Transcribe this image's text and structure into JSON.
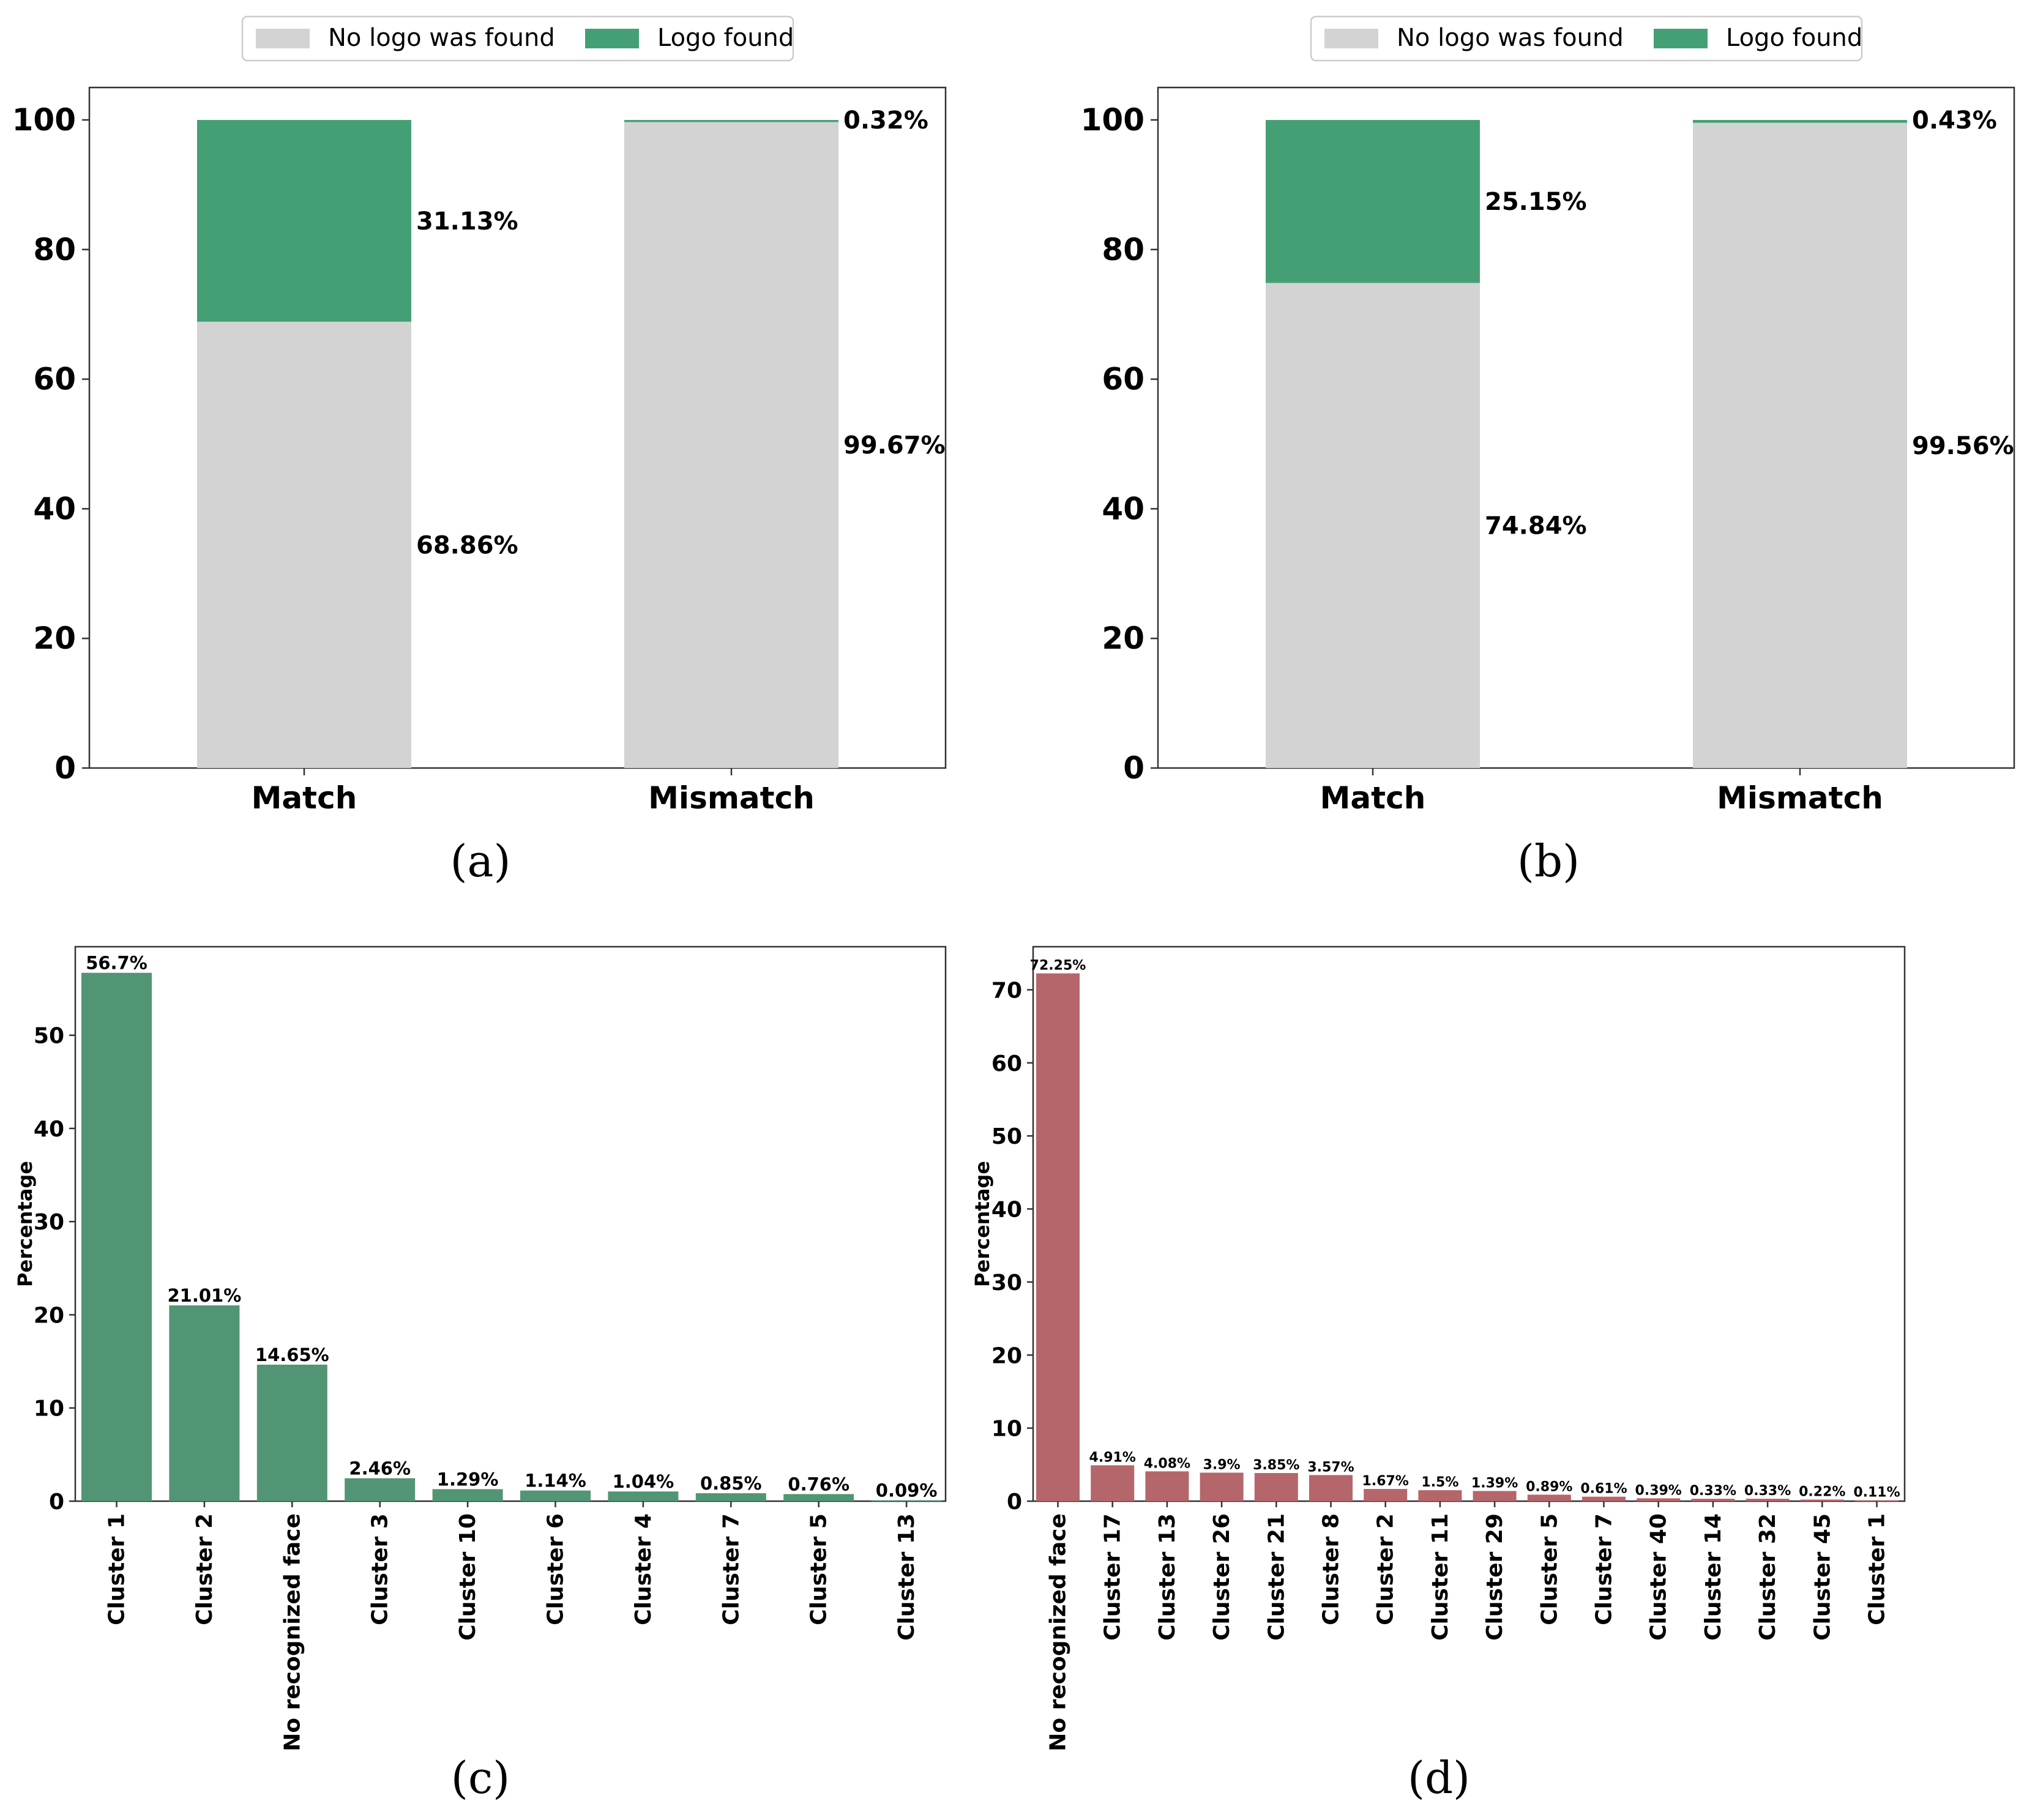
{
  "colors": {
    "no_logo": "#d3d3d3",
    "logo_found": "#44a074",
    "cluster_green": "#529574",
    "cluster_red": "#b5666b",
    "axis": "#333333",
    "text": "#000000"
  },
  "chart_data": [
    {
      "panel": "a",
      "caption": "(a)",
      "type": "bar",
      "stacked": true,
      "categories": [
        "Match",
        "Mismatch"
      ],
      "series": [
        {
          "name": "No logo was found",
          "values": [
            68.86,
            99.67
          ],
          "labels": [
            "68.86%",
            "99.67%"
          ],
          "color": "#d3d3d3"
        },
        {
          "name": "Logo found",
          "values": [
            31.13,
            0.32
          ],
          "labels": [
            "31.13%",
            "0.32%"
          ],
          "color": "#44a074"
        }
      ],
      "ylim": [
        0,
        105
      ],
      "yticks": [
        "0",
        "20",
        "40",
        "60",
        "80",
        "100"
      ],
      "legend": "top-center"
    },
    {
      "panel": "b",
      "caption": "(b)",
      "type": "bar",
      "stacked": true,
      "categories": [
        "Match",
        "Mismatch"
      ],
      "series": [
        {
          "name": "No logo was found",
          "values": [
            74.84,
            99.56
          ],
          "labels": [
            "74.84%",
            "99.56%"
          ],
          "color": "#d3d3d3"
        },
        {
          "name": "Logo found",
          "values": [
            25.15,
            0.43
          ],
          "labels": [
            "25.15%",
            "0.43%"
          ],
          "color": "#44a074"
        }
      ],
      "ylim": [
        0,
        105
      ],
      "yticks": [
        "0",
        "20",
        "40",
        "60",
        "80",
        "100"
      ],
      "legend": "top-center"
    },
    {
      "panel": "c",
      "caption": "(c)",
      "type": "bar",
      "ylabel": "Percentage",
      "categories": [
        "Cluster 1",
        "Cluster 2",
        "No recognized face",
        "Cluster 3",
        "Cluster 10",
        "Cluster 6",
        "Cluster 4",
        "Cluster 7",
        "Cluster 5",
        "Cluster 13"
      ],
      "values": [
        56.7,
        21.01,
        14.65,
        2.46,
        1.29,
        1.14,
        1.04,
        0.85,
        0.76,
        0.09
      ],
      "labels": [
        "56.7%",
        "21.01%",
        "14.65%",
        "2.46%",
        "1.29%",
        "1.14%",
        "1.04%",
        "0.85%",
        "0.76%",
        "0.09%"
      ],
      "color": "#529574",
      "ylim": [
        0,
        59.5
      ],
      "yticks": [
        "0",
        "10",
        "20",
        "30",
        "40",
        "50"
      ]
    },
    {
      "panel": "d",
      "caption": "(d)",
      "type": "bar",
      "ylabel": "Percentage",
      "categories": [
        "No recognized face",
        "Cluster 17",
        "Cluster 13",
        "Cluster 26",
        "Cluster 21",
        "Cluster 8",
        "Cluster 2",
        "Cluster 11",
        "Cluster 29",
        "Cluster 5",
        "Cluster 7",
        "Cluster 40",
        "Cluster 14",
        "Cluster 32",
        "Cluster 45",
        "Cluster 1"
      ],
      "values": [
        72.25,
        4.91,
        4.08,
        3.9,
        3.85,
        3.57,
        1.67,
        1.5,
        1.39,
        0.89,
        0.61,
        0.39,
        0.33,
        0.33,
        0.22,
        0.11
      ],
      "labels": [
        "72.25%",
        "4.91%",
        "4.08%",
        "3.9%",
        "3.85%",
        "3.57%",
        "1.67%",
        "1.5%",
        "1.39%",
        "0.89%",
        "0.61%",
        "0.39%",
        "0.33%",
        "0.33%",
        "0.22%",
        "0.11%"
      ],
      "color": "#b5666b",
      "ylim": [
        0,
        75.9
      ],
      "yticks": [
        "0",
        "10",
        "20",
        "30",
        "40",
        "50",
        "60",
        "70"
      ]
    }
  ]
}
